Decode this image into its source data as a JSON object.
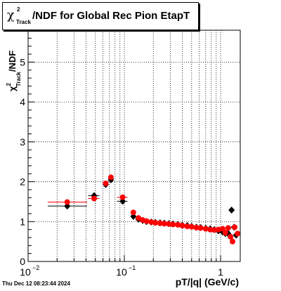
{
  "title": {
    "symbol": "χ",
    "superscript": "2",
    "subscript": "Track",
    "text": "/NDF for Global Rec Pion EtapT"
  },
  "timestamp": "Thu Dec 12 08:23:44 2024",
  "chart_data": {
    "type": "scatter",
    "title": "χ2 Track /NDF for Global Rec Pion EtapT",
    "xlabel": "pT/|q| (GeV/c)",
    "ylabel": "χ2 Track /NDF",
    "xscale": "log",
    "xlim": [
      0.01,
      1.6
    ],
    "ylim": [
      0,
      5.8
    ],
    "grid": true,
    "x_ticks": [
      {
        "value": 0.01,
        "base": "10",
        "exp": "−2"
      },
      {
        "value": 0.1,
        "base": "10",
        "exp": "−1"
      },
      {
        "value": 1,
        "base": "1",
        "exp": ""
      }
    ],
    "y_ticks": [
      "0",
      "1",
      "2",
      "3",
      "4",
      "5"
    ],
    "series": [
      {
        "marker": "diamond",
        "color": "#000000",
        "points": [
          [
            0.0255,
            1.39,
            0.0095,
            0.0155
          ],
          [
            0.0485,
            1.65,
            0.0065,
            0.0065
          ],
          [
            0.064,
            1.93,
            0.002,
            0.002
          ],
          [
            0.0725,
            2.05,
            0.002,
            0.002
          ],
          [
            0.096,
            1.51,
            0.012,
            0.012
          ],
          [
            0.124,
            1.13,
            0.004,
            0.004
          ],
          [
            0.14,
            1.06,
            0.004,
            0.004
          ],
          [
            0.155,
            1.03,
            0.004,
            0.004
          ],
          [
            0.17,
            1.0,
            0.004,
            0.004
          ],
          [
            0.19,
            0.99,
            0.005,
            0.005
          ],
          [
            0.21,
            0.98,
            0.005,
            0.005
          ],
          [
            0.235,
            0.97,
            0.005,
            0.005
          ],
          [
            0.26,
            0.96,
            0.006,
            0.006
          ],
          [
            0.29,
            0.95,
            0.006,
            0.006
          ],
          [
            0.32,
            0.94,
            0.006,
            0.006
          ],
          [
            0.36,
            0.93,
            0.007,
            0.007
          ],
          [
            0.4,
            0.91,
            0.008,
            0.008
          ],
          [
            0.45,
            0.9,
            0.008,
            0.008
          ],
          [
            0.5,
            0.88,
            0.009,
            0.009
          ],
          [
            0.56,
            0.86,
            0.01,
            0.01
          ],
          [
            0.62,
            0.85,
            0.01,
            0.01
          ],
          [
            0.7,
            0.83,
            0.012,
            0.012
          ],
          [
            0.78,
            0.82,
            0.012,
            0.012
          ],
          [
            0.86,
            0.8,
            0.014,
            0.014
          ],
          [
            0.95,
            0.77,
            0.015,
            0.015
          ],
          [
            1.05,
            0.74,
            0.016,
            0.016
          ],
          [
            1.12,
            0.7,
            0.016,
            0.016
          ],
          [
            1.2,
            0.7,
            0.02,
            0.02
          ],
          [
            1.3,
            1.29,
            0.02,
            0.02
          ],
          [
            1.38,
            0.86,
            0.02,
            0.02
          ],
          [
            1.45,
            0.66,
            0.02,
            0.02
          ]
        ]
      },
      {
        "marker": "circle",
        "color": "#ff0000",
        "points": [
          [
            0.0255,
            1.49,
            0.0095,
            0.0155
          ],
          [
            0.0485,
            1.58,
            0.0065,
            0.0065
          ],
          [
            0.064,
            1.96,
            0.002,
            0.002
          ],
          [
            0.0725,
            2.11,
            0.002,
            0.002
          ],
          [
            0.096,
            1.61,
            0.012,
            0.012
          ],
          [
            0.124,
            1.23,
            0.004,
            0.004
          ],
          [
            0.14,
            1.09,
            0.004,
            0.004
          ],
          [
            0.155,
            1.04,
            0.004,
            0.004
          ],
          [
            0.17,
            1.01,
            0.004,
            0.004
          ],
          [
            0.19,
            0.99,
            0.005,
            0.005
          ],
          [
            0.21,
            0.97,
            0.005,
            0.005
          ],
          [
            0.235,
            0.96,
            0.005,
            0.005
          ],
          [
            0.26,
            0.95,
            0.006,
            0.006
          ],
          [
            0.29,
            0.94,
            0.006,
            0.006
          ],
          [
            0.32,
            0.93,
            0.006,
            0.006
          ],
          [
            0.36,
            0.92,
            0.007,
            0.007
          ],
          [
            0.4,
            0.9,
            0.008,
            0.008
          ],
          [
            0.45,
            0.88,
            0.008,
            0.008
          ],
          [
            0.5,
            0.87,
            0.009,
            0.009
          ],
          [
            0.56,
            0.85,
            0.01,
            0.01
          ],
          [
            0.62,
            0.84,
            0.01,
            0.01
          ],
          [
            0.7,
            0.82,
            0.012,
            0.012
          ],
          [
            0.78,
            0.8,
            0.012,
            0.012
          ],
          [
            0.86,
            0.79,
            0.014,
            0.014
          ],
          [
            0.95,
            0.8,
            0.015,
            0.015
          ],
          [
            1.05,
            0.82,
            0.016,
            0.016
          ],
          [
            1.12,
            0.72,
            0.016,
            0.016
          ],
          [
            1.2,
            0.84,
            0.02,
            0.02
          ],
          [
            1.27,
            0.62,
            0.02,
            0.02
          ],
          [
            1.33,
            0.5,
            0.02,
            0.02
          ],
          [
            1.4,
            0.86,
            0.02,
            0.02
          ],
          [
            1.5,
            0.7,
            0.02,
            0.02
          ]
        ]
      }
    ]
  }
}
